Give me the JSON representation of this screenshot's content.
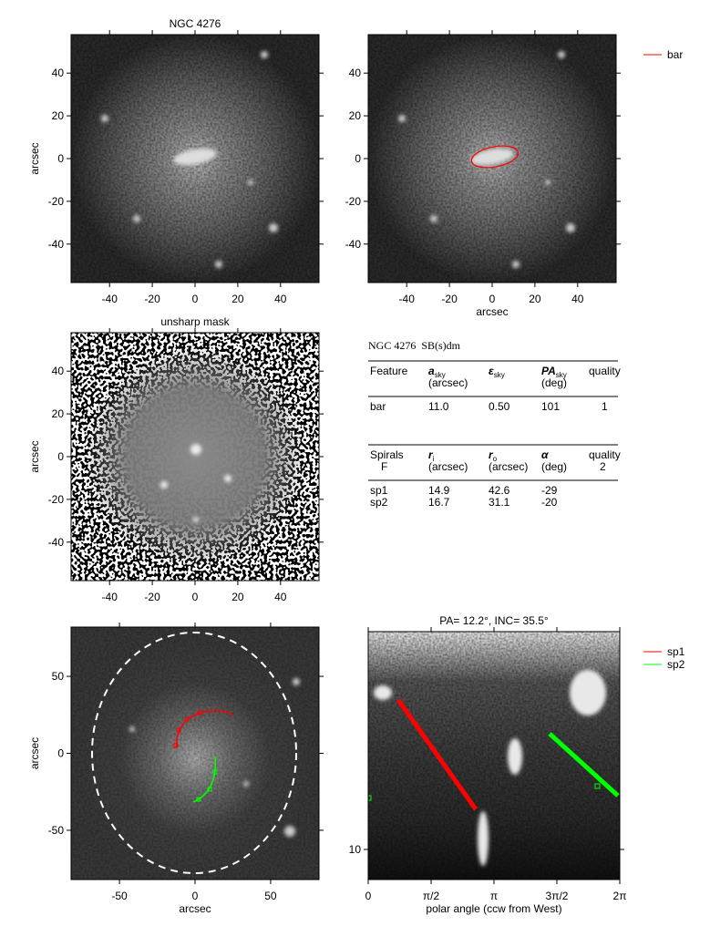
{
  "panels": [
    {
      "title": "NGC 4276",
      "ylabel": "arcsec",
      "xlim": [
        -58,
        58
      ],
      "ylim": [
        -58,
        58
      ],
      "xticks": [
        -40,
        -20,
        0,
        20,
        40
      ],
      "yticks": [
        -40,
        -20,
        0,
        20,
        40
      ]
    },
    {
      "xlabel": "arcsec",
      "xlim": [
        -58,
        58
      ],
      "ylim": [
        -58,
        58
      ],
      "xticks": [
        -40,
        -20,
        0,
        20,
        40
      ],
      "yticks": [
        -40,
        -20,
        0,
        20,
        40
      ],
      "legend": [
        {
          "name": "bar",
          "color": "#ff0000"
        }
      ]
    },
    {
      "title": "unsharp mask",
      "ylabel": "arcsec",
      "xlim": [
        -58,
        58
      ],
      "ylim": [
        -58,
        58
      ],
      "xticks": [
        -40,
        -20,
        0,
        20,
        40
      ],
      "yticks": [
        -40,
        -20,
        0,
        20,
        40
      ]
    },
    {
      "xlabel": "arcsec",
      "ylabel": "arcsec",
      "xlim": [
        -82,
        82
      ],
      "ylim": [
        -82,
        82
      ],
      "xticks": [
        -50,
        0,
        50
      ],
      "yticks": [
        -50,
        0,
        50
      ]
    },
    {
      "title": "PA= 12.2°, INC= 35.5°",
      "xlabel": "polar angle (ccw from West)",
      "xlim": [
        0,
        6.2832
      ],
      "xticks": [
        0,
        {
          "value": 1.5708,
          "label": "π/2"
        },
        {
          "value": 3.1416,
          "label": "π"
        },
        {
          "value": 4.7124,
          "label": "3π/2"
        },
        {
          "value": 6.2832,
          "label": "2π"
        }
      ],
      "ylim": [
        7.9,
        55
      ],
      "ylog": true,
      "yticks": [
        10
      ],
      "legend": [
        {
          "name": "sp1",
          "color": "#ff0000"
        },
        {
          "name": "sp2",
          "color": "#00ff00"
        }
      ]
    }
  ],
  "table": {
    "title": "NGC 4276  SB(s)dm",
    "bar_section": {
      "header": [
        {
          "text": "Feature"
        },
        {
          "symbol": "a",
          "sub": "sky",
          "unit": "(arcsec)"
        },
        {
          "symbol": "ε",
          "sub": "sky"
        },
        {
          "symbol": "PA",
          "sub": "sky",
          "unit": "(deg)"
        },
        {
          "text": "quality"
        }
      ],
      "rows": [
        [
          "bar",
          "11.0",
          "0.50",
          "101",
          "1"
        ]
      ]
    },
    "spiral_section": {
      "header": [
        {
          "text": "Spirals",
          "note": "F"
        },
        {
          "symbol": "r",
          "sub": "i",
          "unit": "(arcsec)"
        },
        {
          "symbol": "r",
          "sub": "o",
          "unit": "(arcsec)"
        },
        {
          "symbol": "α",
          "unit": "(deg)"
        },
        {
          "text": "quality",
          "note": "2"
        }
      ],
      "rows": [
        [
          "sp1",
          "14.9",
          "42.6",
          "-29"
        ],
        [
          "sp2",
          "16.7",
          "31.1",
          "-20"
        ]
      ]
    }
  }
}
